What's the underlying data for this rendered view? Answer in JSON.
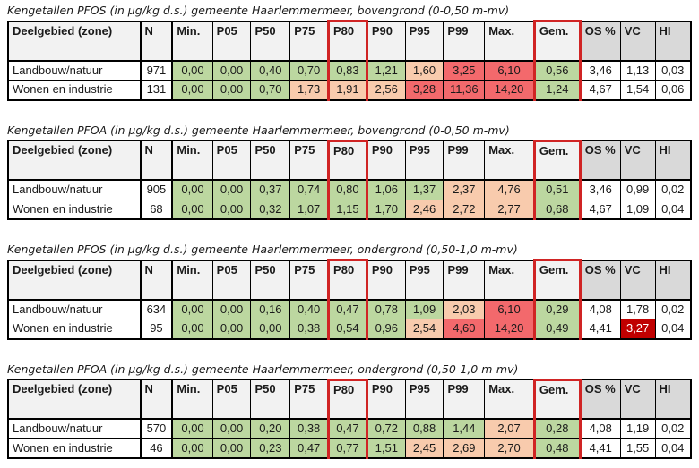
{
  "page": {
    "background": "#ffffff"
  },
  "colors": {
    "white": "#ffffff",
    "green": "#bcd7a0",
    "orange": "#f8cbad",
    "red": "#f3696c",
    "darkred": "#c00000",
    "header_light": "#f2f2f2",
    "header_dark": "#d9d9d9",
    "highlight_border": "#d02424",
    "table_border": "#000000",
    "text": "#1a1a1a"
  },
  "columns": [
    "Deelgebied (zone)",
    "N",
    "Min.",
    "P05",
    "P50",
    "P75",
    "P80",
    "P90",
    "P95",
    "P99",
    "Max.",
    "Gem.",
    "OS %",
    "VC",
    "HI"
  ],
  "highlight_columns": [
    6,
    11
  ],
  "dark_header_columns": [
    12,
    13,
    14
  ],
  "tables": [
    {
      "title": "Kengetallen PFOS (in µg/kg d.s.) gemeente Haarlemmermeer, bovengrond (0-0,50 m-mv)",
      "rows": [
        {
          "cells": [
            {
              "v": "Landbouw/natuur",
              "f": "white"
            },
            {
              "v": "971",
              "f": "white"
            },
            {
              "v": "0,00",
              "f": "green"
            },
            {
              "v": "0,00",
              "f": "green"
            },
            {
              "v": "0,40",
              "f": "green"
            },
            {
              "v": "0,70",
              "f": "green"
            },
            {
              "v": "0,83",
              "f": "green"
            },
            {
              "v": "1,21",
              "f": "green"
            },
            {
              "v": "1,60",
              "f": "orange"
            },
            {
              "v": "3,25",
              "f": "red"
            },
            {
              "v": "6,10",
              "f": "red"
            },
            {
              "v": "0,56",
              "f": "green"
            },
            {
              "v": "3,46",
              "f": "white"
            },
            {
              "v": "1,13",
              "f": "white"
            },
            {
              "v": "0,03",
              "f": "white"
            }
          ]
        },
        {
          "cells": [
            {
              "v": "Wonen en industrie",
              "f": "white"
            },
            {
              "v": "131",
              "f": "white"
            },
            {
              "v": "0,00",
              "f": "green"
            },
            {
              "v": "0,00",
              "f": "green"
            },
            {
              "v": "0,70",
              "f": "green"
            },
            {
              "v": "1,73",
              "f": "orange"
            },
            {
              "v": "1,91",
              "f": "orange"
            },
            {
              "v": "2,56",
              "f": "orange"
            },
            {
              "v": "3,28",
              "f": "red"
            },
            {
              "v": "11,36",
              "f": "red"
            },
            {
              "v": "14,20",
              "f": "red"
            },
            {
              "v": "1,24",
              "f": "green"
            },
            {
              "v": "4,67",
              "f": "white"
            },
            {
              "v": "1,54",
              "f": "white"
            },
            {
              "v": "0,06",
              "f": "white"
            }
          ]
        }
      ]
    },
    {
      "title": "Kengetallen PFOA (in µg/kg d.s.) gemeente Haarlemmermeer, bovengrond (0-0,50 m-mv)",
      "rows": [
        {
          "cells": [
            {
              "v": "Landbouw/natuur",
              "f": "white"
            },
            {
              "v": "905",
              "f": "white"
            },
            {
              "v": "0,00",
              "f": "green"
            },
            {
              "v": "0,00",
              "f": "green"
            },
            {
              "v": "0,37",
              "f": "green"
            },
            {
              "v": "0,74",
              "f": "green"
            },
            {
              "v": "0,80",
              "f": "green"
            },
            {
              "v": "1,06",
              "f": "green"
            },
            {
              "v": "1,37",
              "f": "green"
            },
            {
              "v": "2,37",
              "f": "orange"
            },
            {
              "v": "4,76",
              "f": "orange"
            },
            {
              "v": "0,51",
              "f": "green"
            },
            {
              "v": "3,46",
              "f": "white"
            },
            {
              "v": "0,99",
              "f": "white"
            },
            {
              "v": "0,02",
              "f": "white"
            }
          ]
        },
        {
          "cells": [
            {
              "v": "Wonen en industrie",
              "f": "white"
            },
            {
              "v": "68",
              "f": "white"
            },
            {
              "v": "0,00",
              "f": "green"
            },
            {
              "v": "0,00",
              "f": "green"
            },
            {
              "v": "0,32",
              "f": "green"
            },
            {
              "v": "1,07",
              "f": "green"
            },
            {
              "v": "1,15",
              "f": "green"
            },
            {
              "v": "1,70",
              "f": "green"
            },
            {
              "v": "2,46",
              "f": "orange"
            },
            {
              "v": "2,72",
              "f": "orange"
            },
            {
              "v": "2,77",
              "f": "orange"
            },
            {
              "v": "0,68",
              "f": "green"
            },
            {
              "v": "4,67",
              "f": "white"
            },
            {
              "v": "1,09",
              "f": "white"
            },
            {
              "v": "0,04",
              "f": "white"
            }
          ]
        }
      ]
    },
    {
      "title": "Kengetallen PFOS (in µg/kg d.s.) gemeente Haarlemmermeer, ondergrond (0,50-1,0 m-mv)",
      "rows": [
        {
          "cells": [
            {
              "v": "Landbouw/natuur",
              "f": "white"
            },
            {
              "v": "634",
              "f": "white"
            },
            {
              "v": "0,00",
              "f": "green"
            },
            {
              "v": "0,00",
              "f": "green"
            },
            {
              "v": "0,16",
              "f": "green"
            },
            {
              "v": "0,40",
              "f": "green"
            },
            {
              "v": "0,47",
              "f": "green"
            },
            {
              "v": "0,78",
              "f": "green"
            },
            {
              "v": "1,09",
              "f": "green"
            },
            {
              "v": "2,03",
              "f": "orange"
            },
            {
              "v": "6,10",
              "f": "red"
            },
            {
              "v": "0,29",
              "f": "green"
            },
            {
              "v": "4,08",
              "f": "white"
            },
            {
              "v": "1,78",
              "f": "white"
            },
            {
              "v": "0,02",
              "f": "white"
            }
          ]
        },
        {
          "cells": [
            {
              "v": "Wonen en industrie",
              "f": "white"
            },
            {
              "v": "95",
              "f": "white"
            },
            {
              "v": "0,00",
              "f": "green"
            },
            {
              "v": "0,00",
              "f": "green"
            },
            {
              "v": "0,00",
              "f": "green"
            },
            {
              "v": "0,38",
              "f": "green"
            },
            {
              "v": "0,54",
              "f": "green"
            },
            {
              "v": "0,96",
              "f": "green"
            },
            {
              "v": "2,54",
              "f": "orange"
            },
            {
              "v": "4,60",
              "f": "red"
            },
            {
              "v": "14,20",
              "f": "red"
            },
            {
              "v": "0,49",
              "f": "green"
            },
            {
              "v": "4,41",
              "f": "white"
            },
            {
              "v": "3,27",
              "f": "darkred"
            },
            {
              "v": "0,04",
              "f": "white"
            }
          ]
        }
      ]
    },
    {
      "title": "Kengetallen PFOA (in µg/kg d.s.) gemeente Haarlemmermeer, ondergrond (0,50-1,0 m-mv)",
      "rows": [
        {
          "cells": [
            {
              "v": "Landbouw/natuur",
              "f": "white"
            },
            {
              "v": "570",
              "f": "white"
            },
            {
              "v": "0,00",
              "f": "green"
            },
            {
              "v": "0,00",
              "f": "green"
            },
            {
              "v": "0,20",
              "f": "green"
            },
            {
              "v": "0,38",
              "f": "green"
            },
            {
              "v": "0,47",
              "f": "green"
            },
            {
              "v": "0,72",
              "f": "green"
            },
            {
              "v": "0,88",
              "f": "green"
            },
            {
              "v": "1,44",
              "f": "green"
            },
            {
              "v": "2,07",
              "f": "orange"
            },
            {
              "v": "0,28",
              "f": "green"
            },
            {
              "v": "4,08",
              "f": "white"
            },
            {
              "v": "1,19",
              "f": "white"
            },
            {
              "v": "0,02",
              "f": "white"
            }
          ]
        },
        {
          "cells": [
            {
              "v": "Wonen en industrie",
              "f": "white"
            },
            {
              "v": "46",
              "f": "white"
            },
            {
              "v": "0,00",
              "f": "green"
            },
            {
              "v": "0,00",
              "f": "green"
            },
            {
              "v": "0,23",
              "f": "green"
            },
            {
              "v": "0,47",
              "f": "green"
            },
            {
              "v": "0,77",
              "f": "green"
            },
            {
              "v": "1,51",
              "f": "green"
            },
            {
              "v": "2,45",
              "f": "orange"
            },
            {
              "v": "2,69",
              "f": "orange"
            },
            {
              "v": "2,70",
              "f": "orange"
            },
            {
              "v": "0,48",
              "f": "green"
            },
            {
              "v": "4,41",
              "f": "white"
            },
            {
              "v": "1,55",
              "f": "white"
            },
            {
              "v": "0,04",
              "f": "white"
            }
          ]
        }
      ]
    }
  ]
}
